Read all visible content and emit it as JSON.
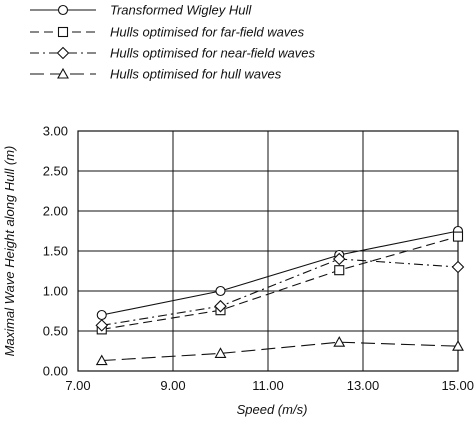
{
  "chart_data": {
    "type": "line",
    "xlabel": "Speed (m/s)",
    "ylabel": "Maximal Wave Height along Hull (m)",
    "xlim": [
      7.0,
      15.0
    ],
    "ylim": [
      0.0,
      3.0
    ],
    "x_ticks": [
      "7.00",
      "9.00",
      "11.00",
      "13.00",
      "15.00"
    ],
    "y_ticks": [
      "0.00",
      "0.50",
      "1.00",
      "1.50",
      "2.00",
      "2.50",
      "3.00"
    ],
    "grid": true,
    "legend_position": "top-left, above plot",
    "series": [
      {
        "name": "Transformed Wigley Hull",
        "marker": "circle",
        "line_style": "solid",
        "x": [
          7.5,
          10.0,
          12.5,
          15.0
        ],
        "y": [
          0.7,
          1.0,
          1.45,
          1.75
        ]
      },
      {
        "name": "Hulls optimised for far-field waves",
        "marker": "square",
        "line_style": "dashed",
        "x": [
          7.5,
          10.0,
          12.5,
          15.0
        ],
        "y": [
          0.52,
          0.76,
          1.26,
          1.68
        ]
      },
      {
        "name": "Hulls optimised for near-field waves",
        "marker": "diamond",
        "line_style": "dash-dot",
        "x": [
          7.5,
          10.0,
          12.5,
          15.0
        ],
        "y": [
          0.57,
          0.81,
          1.4,
          1.3
        ]
      },
      {
        "name": "Hulls optimised for hull waves",
        "marker": "triangle",
        "line_style": "long-dash",
        "x": [
          7.5,
          10.0,
          12.5,
          15.0
        ],
        "y": [
          0.13,
          0.22,
          0.36,
          0.31
        ]
      }
    ]
  }
}
